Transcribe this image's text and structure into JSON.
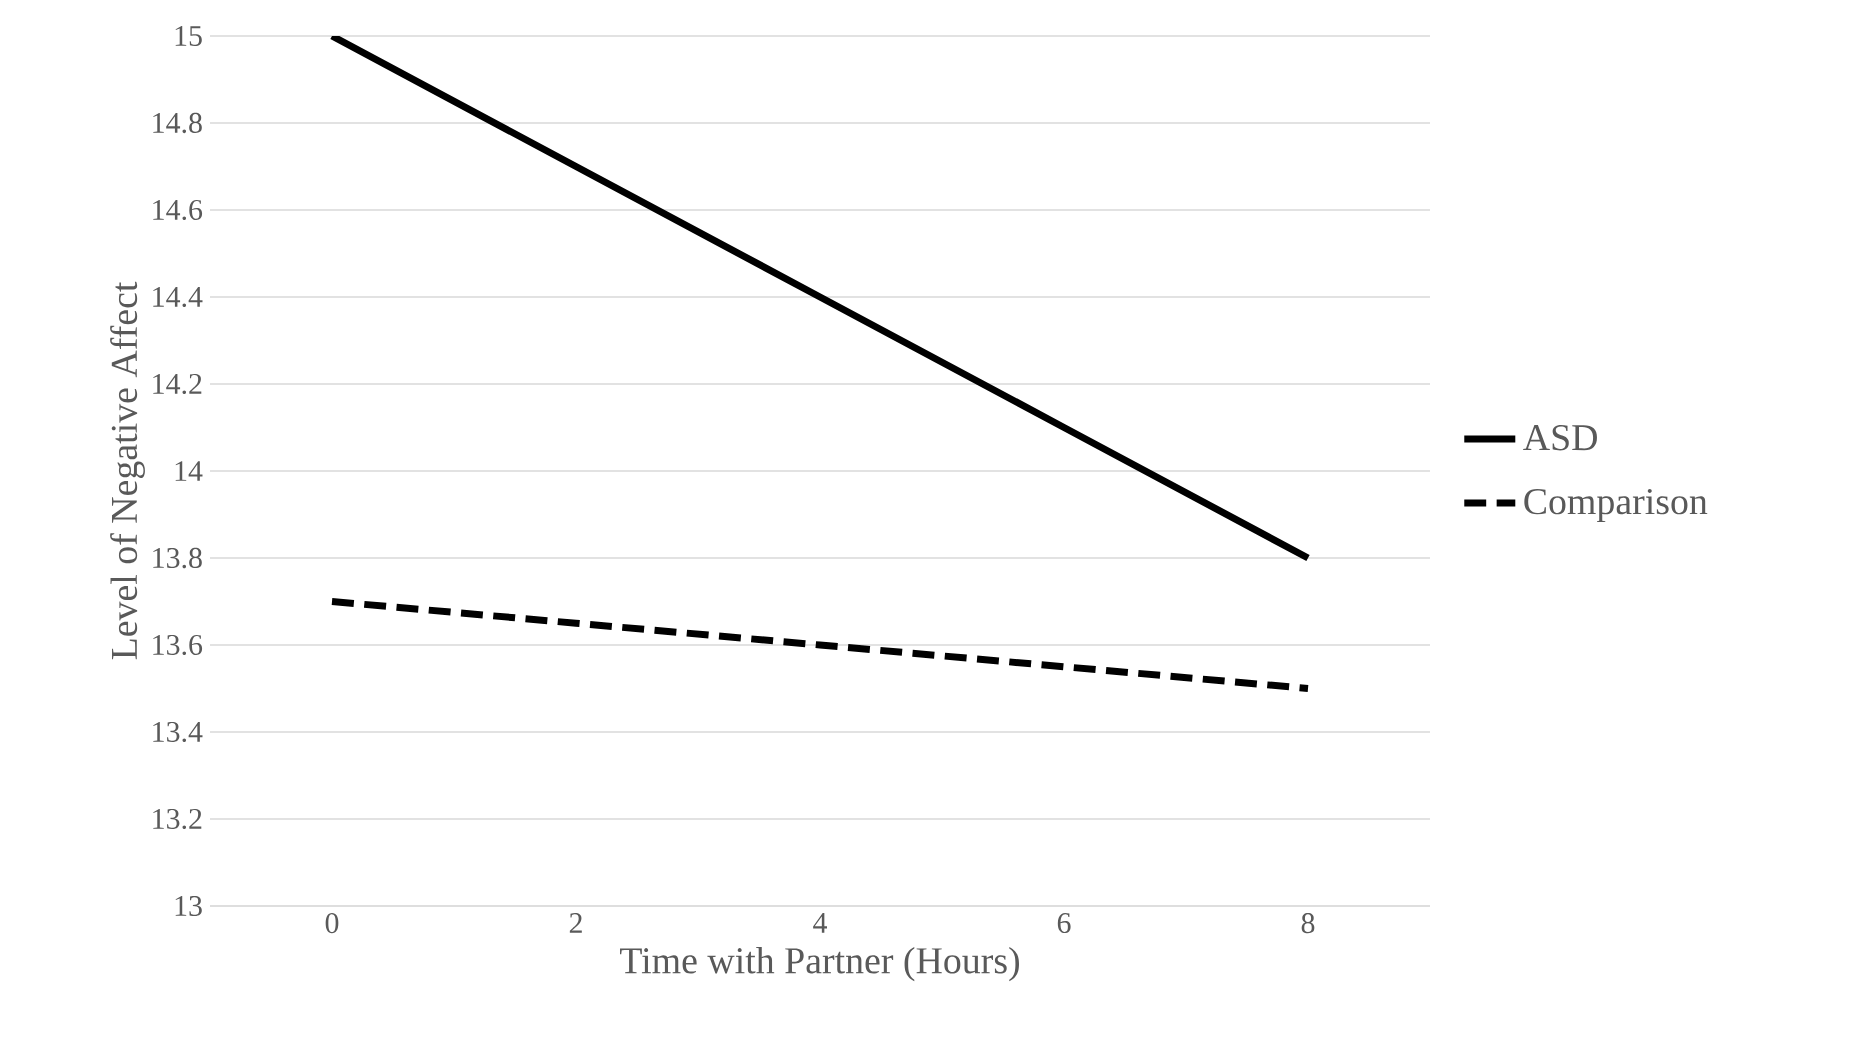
{
  "chart_data": {
    "type": "line",
    "xlabel": "Time with Partner (Hours)",
    "ylabel": "Level of  Negative Affect",
    "categories": [
      "0",
      "2",
      "4",
      "6",
      "8"
    ],
    "series": [
      {
        "name": "ASD",
        "color": "#000000",
        "line_style": "solid",
        "values": [
          15,
          14.7,
          14.4,
          14.1,
          13.8
        ]
      },
      {
        "name": "Comparison",
        "color": "#000000",
        "line_style": "dashed",
        "values": [
          13.7,
          13.65,
          13.6,
          13.55,
          13.5
        ]
      }
    ],
    "ylim": [
      13,
      15
    ],
    "yticks": [
      13,
      13.2,
      13.4,
      13.6,
      13.8,
      14,
      14.2,
      14.4,
      14.6,
      14.8,
      15
    ],
    "grid": "y",
    "legend": "right",
    "marker": "none"
  }
}
